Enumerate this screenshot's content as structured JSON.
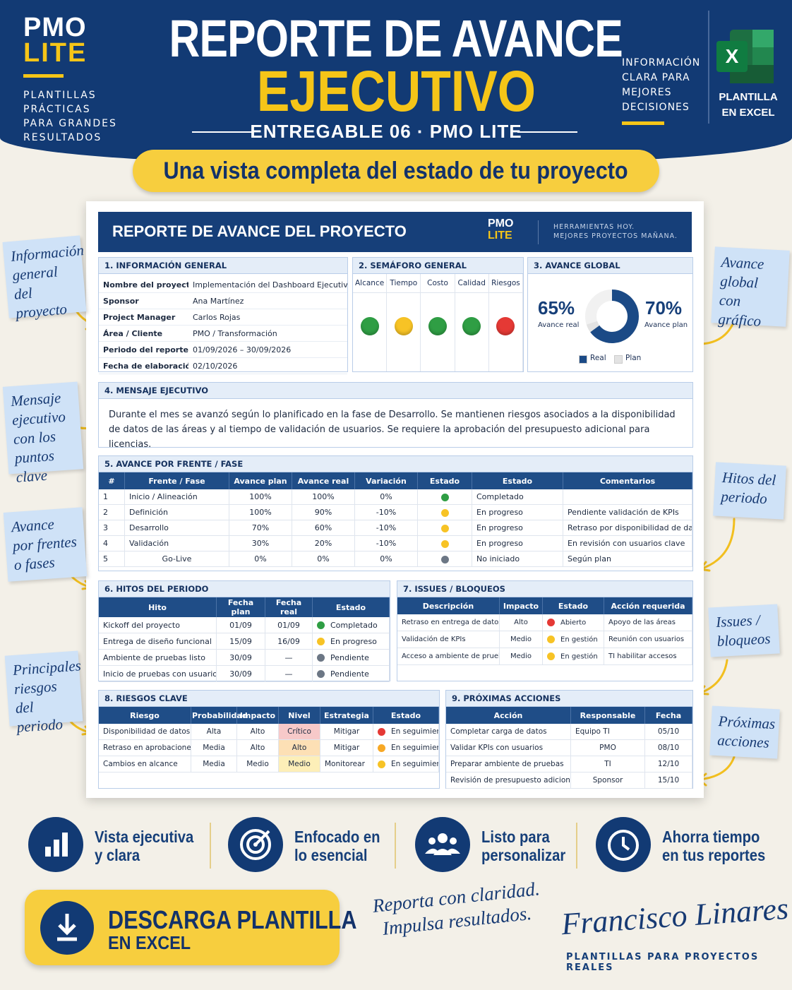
{
  "header": {
    "logo_top": "PMO",
    "logo_bottom": "LITE",
    "tagline": [
      "PLANTILLAS",
      "PRÁCTICAS",
      "PARA GRANDES",
      "RESULTADOS"
    ],
    "title_line1": "REPORTE DE AVANCE",
    "title_line2": "EJECUTIVO",
    "subtitle": "ENTREGABLE 06 · PMO LITE",
    "info": [
      "INFORMACIÓN",
      "CLARA PARA",
      "MEJORES",
      "DECISIONES"
    ],
    "excel_icon": "X",
    "excel_label": [
      "PLANTILLA",
      "EN EXCEL"
    ]
  },
  "banner": "Una vista completa del estado de tu proyecto",
  "report": {
    "title": "REPORTE DE AVANCE DEL PROYECTO",
    "logo_top": "PMO",
    "logo_bottom": "LITE",
    "tagline": [
      "HERRAMIENTAS HOY.",
      "MEJORES PROYECTOS MAÑANA."
    ],
    "general": {
      "title": "1. INFORMACIÓN GENERAL",
      "rows": [
        [
          "Nombre del proyecto",
          "Implementación del Dashboard Ejecutivo"
        ],
        [
          "Sponsor",
          "Ana Martínez"
        ],
        [
          "Project Manager",
          "Carlos Rojas"
        ],
        [
          "Área / Cliente",
          "PMO / Transformación"
        ],
        [
          "Periodo del reporte",
          "01/09/2026 – 30/09/2026"
        ],
        [
          "Fecha de elaboración",
          "02/10/2026"
        ]
      ]
    },
    "semaforo": {
      "title": "2. SEMÁFORO GENERAL",
      "items": [
        {
          "label": "Alcance",
          "color": "#2f9e44"
        },
        {
          "label": "Tiempo",
          "color": "#f7c325"
        },
        {
          "label": "Costo",
          "color": "#2f9e44"
        },
        {
          "label": "Calidad",
          "color": "#2f9e44"
        },
        {
          "label": "Riesgos",
          "color": "#e53935"
        }
      ]
    },
    "avance": {
      "title": "3. AVANCE GLOBAL",
      "real": {
        "value": 65,
        "label": "65%"
      },
      "real_label": "Avance real",
      "plan": {
        "value": 70,
        "label": "70%"
      },
      "plan_label": "Avance plan",
      "legend": [
        {
          "name": "Real",
          "color": "#1b4a86"
        },
        {
          "name": "Plan",
          "color": "#e3e3e3"
        }
      ]
    },
    "mensaje": {
      "title": "4. MENSAJE EJECUTIVO",
      "text": "Durante el mes se avanzó según lo planificado en la fase de Desarrollo. Se mantienen riesgos asociados a la disponibilidad de datos de las áreas y al tiempo de validación de usuarios. Se requiere la aprobación del presupuesto adicional para licencias."
    },
    "frentes": {
      "title": "5. AVANCE POR FRENTE / FASE",
      "columns": [
        "#",
        "Frente / Fase",
        "Avance plan",
        "Avance real",
        "Variación",
        "Estado",
        "Estado",
        "Comentarios"
      ],
      "rows": [
        [
          "1",
          "Inicio / Alineación",
          "100%",
          "100%",
          "0%",
          {
            "color": "#2f9e44"
          },
          "Completado"
        ],
        [
          "2",
          "Definición",
          "100%",
          "90%",
          "-10%",
          {
            "color": "#f7c325"
          },
          "En progreso",
          "Pendiente validación de KPIs"
        ],
        [
          "3",
          "Desarrollo",
          "70%",
          "60%",
          "-10%",
          {
            "color": "#f7c325"
          },
          "En progreso",
          "Retraso por disponibilidad de datos"
        ],
        [
          "4",
          "Validación",
          "30%",
          "20%",
          "-10%",
          {
            "color": "#f7c325"
          },
          "En progreso",
          "En revisión con usuarios clave"
        ],
        [
          "5",
          "Go-Live",
          "0%",
          "0%",
          "0%",
          {
            "color": "#6c7785"
          },
          "No iniciado",
          "Según plan"
        ]
      ]
    },
    "hitos": {
      "title": "6. HITOS DEL PERIODO",
      "columns": [
        "Hito",
        "Fecha plan",
        "Fecha real",
        "Estado"
      ],
      "rows": [
        [
          "Kickoff del proyecto",
          "01/09",
          "01/09",
          {
            "color": "#2f9e44",
            "text": "Completado"
          }
        ],
        [
          "Entrega de diseño funcional",
          "15/09",
          "16/09",
          {
            "color": "#f7c325",
            "text": "En progreso"
          }
        ],
        [
          "Ambiente de pruebas listo",
          "30/09",
          "—",
          {
            "color": "#6c7785",
            "text": "Pendiente"
          }
        ],
        [
          "Inicio de pruebas con usuarios",
          "30/09",
          "—",
          {
            "color": "#6c7785",
            "text": "Pendiente"
          }
        ]
      ]
    },
    "issues": {
      "title": "7. ISSUES / BLOQUEOS",
      "columns": [
        "Descripción",
        "Impacto",
        "Estado",
        "Acción requerida"
      ],
      "rows": [
        [
          "Retraso en entrega de datos",
          "Alto",
          {
            "color": "#e53935",
            "text": "Abierto"
          },
          "Apoyo de las áreas"
        ],
        [
          "Validación de KPIs",
          "Medio",
          {
            "color": "#f7c325",
            "text": "En gestión"
          },
          "Reunión con usuarios"
        ],
        [
          "Acceso a ambiente de pruebas",
          "Medio",
          {
            "color": "#f7c325",
            "text": "En gestión"
          },
          "TI habilitar accesos"
        ]
      ]
    },
    "riesgos": {
      "title": "8. RIESGOS CLAVE",
      "columns": [
        "Riesgo",
        "Probabilidad",
        "Impacto",
        "Nivel",
        "Estrategia",
        "Estado"
      ],
      "rows": [
        [
          "Disponibilidad de datos",
          "Alta",
          "Alto",
          {
            "bg": "#f7c9c9",
            "text": "Crítico"
          },
          "Mitigar",
          {
            "color": "#e53935",
            "text": "En seguimiento"
          }
        ],
        [
          "Retraso en aprobaciones",
          "Media",
          "Alto",
          {
            "bg": "#fde0b5",
            "text": "Alto"
          },
          "Mitigar",
          {
            "color": "#f7a825",
            "text": "En seguimiento"
          }
        ],
        [
          "Cambios en alcance",
          "Media",
          "Medio",
          {
            "bg": "#fdefb8",
            "text": "Medio"
          },
          "Monitorear",
          {
            "color": "#f7c325",
            "text": "En seguimiento"
          }
        ]
      ]
    },
    "acciones": {
      "title": "9. PRÓXIMAS ACCIONES",
      "columns": [
        "Acción",
        "Responsable",
        "Fecha"
      ],
      "rows": [
        [
          "Completar carga de datos",
          "Equipo TI",
          "05/10"
        ],
        [
          "Validar KPIs con usuarios",
          "PMO",
          "08/10"
        ],
        [
          "Preparar ambiente de pruebas",
          "TI",
          "12/10"
        ],
        [
          "Revisión de presupuesto adicional",
          "Sponsor",
          "15/10"
        ]
      ]
    }
  },
  "notes": [
    "Información general del proyecto",
    "Mensaje ejecutivo con los puntos clave",
    "Avance por frentes o fases",
    "Principales riesgos del periodo",
    "Avance global con gráfico",
    "Hitos del periodo",
    "Issues / bloqueos",
    "Próximas acciones"
  ],
  "features": [
    [
      "Vista ejecutiva",
      "y clara"
    ],
    [
      "Enfocado en",
      "lo esencial"
    ],
    [
      "Listo para",
      "personalizar"
    ],
    [
      "Ahorra tiempo",
      "en tus reportes"
    ]
  ],
  "cta": [
    "DESCARGA PLANTILLA",
    "EN EXCEL"
  ],
  "slogan": [
    "Reporta con claridad.",
    "Impulsa resultados."
  ],
  "signature": "Francisco Linares",
  "signature_sub": "PLANTILLAS PARA PROYECTOS REALES"
}
